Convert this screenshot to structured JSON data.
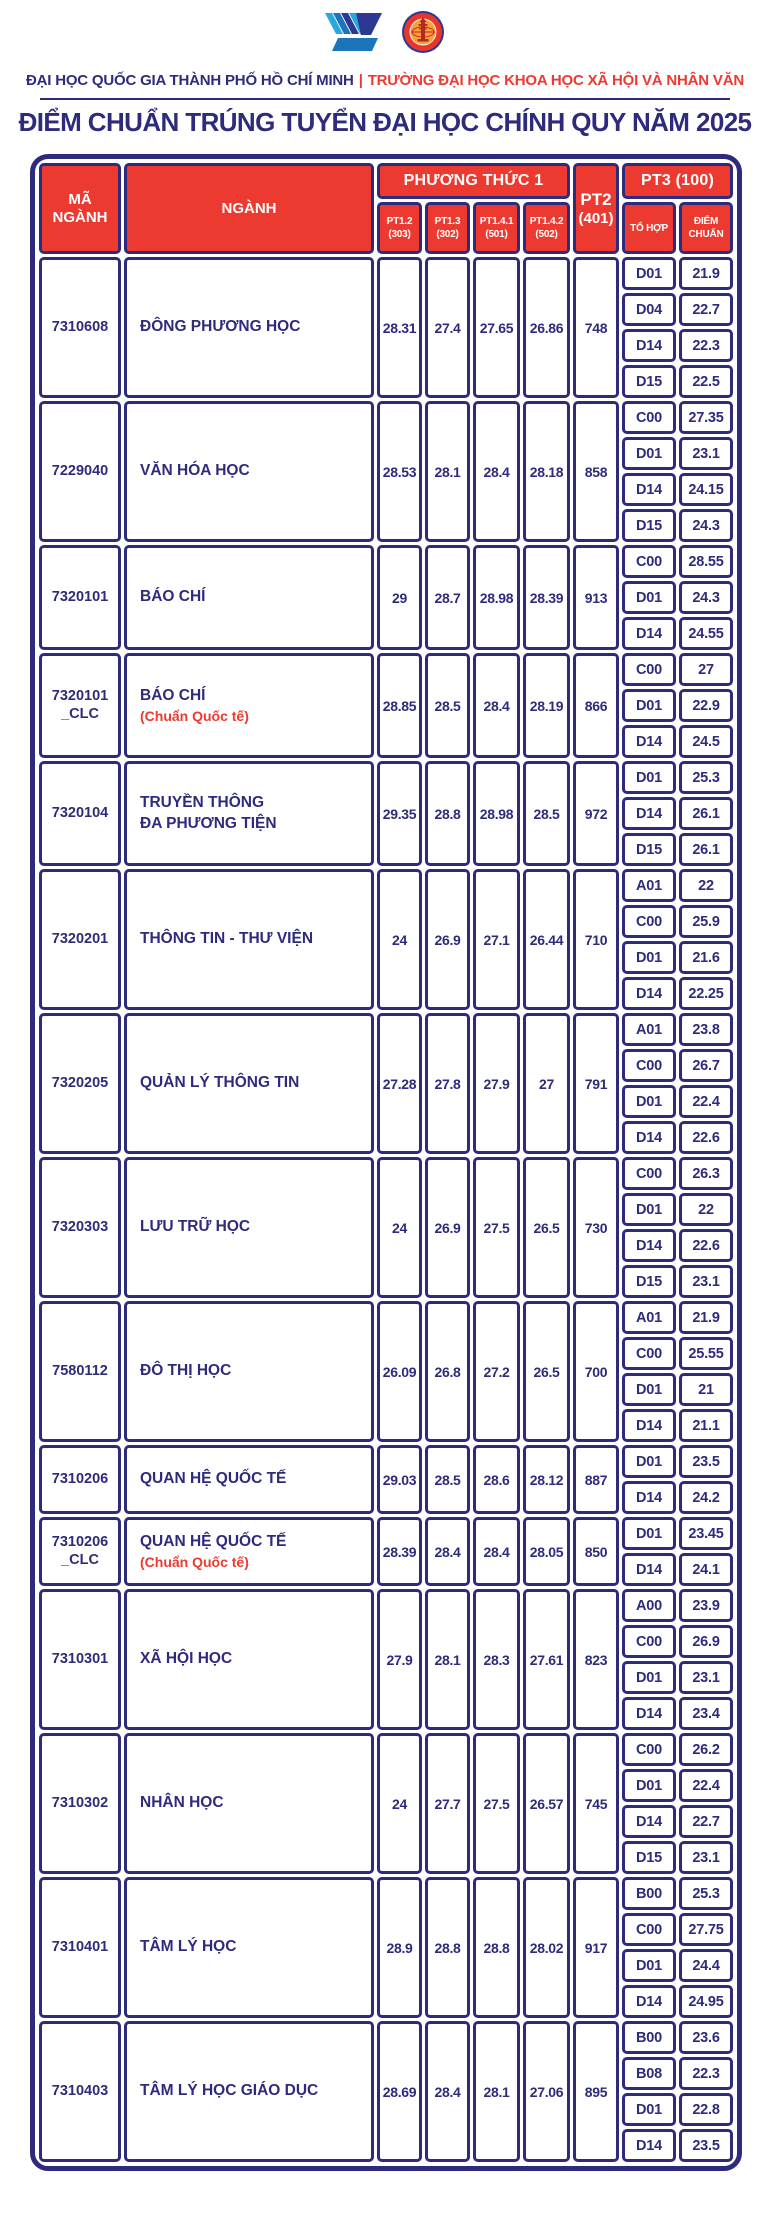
{
  "colors": {
    "navy": "#2e2b7c",
    "red": "#ec3a31",
    "logo_blue_dark": "#2b3990",
    "logo_blue_mid": "#1b75bb",
    "logo_blue_light": "#28a8e0",
    "seal_orange": "#f8a13a",
    "seal_red": "#b5281e"
  },
  "branding": {
    "logos": [
      "vnu-hcm-logo",
      "ussh-seal"
    ],
    "org_left": "ĐẠI HỌC QUỐC GIA THÀNH PHỐ HỒ CHÍ MINH",
    "separator": "|",
    "org_right": "TRƯỜNG ĐẠI HỌC KHOA HỌC XÃ HỘI VÀ NHÂN VĂN",
    "title": "ĐIỂM CHUẨN TRÚNG TUYỂN ĐẠI HỌC CHÍNH QUY NĂM 2025"
  },
  "table": {
    "header": {
      "ma_nganh": "MÃ NGÀNH",
      "nganh": "NGÀNH",
      "phuong_thuc_1": "PHƯƠNG THỨC 1",
      "pt1_subcols": [
        {
          "line1": "PT1.2",
          "line2": "(303)"
        },
        {
          "line1": "PT1.3",
          "line2": "(302)"
        },
        {
          "line1": "PT1.4.1",
          "line2": "(501)"
        },
        {
          "line1": "PT1.4.2",
          "line2": "(502)"
        }
      ],
      "pt2_line1": "PT2",
      "pt2_line2": "(401)",
      "pt3": "PT3 (100)",
      "to_hop": "TỔ HỢP",
      "diem_chuan_line1": "ĐIỂM",
      "diem_chuan_line2": "CHUẨN"
    },
    "rows": [
      {
        "code_lines": [
          "7310608"
        ],
        "name_lines": [
          "ĐÔNG PHƯƠNG HỌC"
        ],
        "pt1": [
          "28.31",
          "27.4",
          "27.65",
          "26.86"
        ],
        "pt2": "748",
        "pt3": [
          {
            "to_hop": "D01",
            "diem": "21.9"
          },
          {
            "to_hop": "D04",
            "diem": "22.7"
          },
          {
            "to_hop": "D14",
            "diem": "22.3"
          },
          {
            "to_hop": "D15",
            "diem": "22.5"
          }
        ]
      },
      {
        "code_lines": [
          "7229040"
        ],
        "name_lines": [
          "VĂN HÓA HỌC"
        ],
        "pt1": [
          "28.53",
          "28.1",
          "28.4",
          "28.18"
        ],
        "pt2": "858",
        "pt3": [
          {
            "to_hop": "C00",
            "diem": "27.35"
          },
          {
            "to_hop": "D01",
            "diem": "23.1"
          },
          {
            "to_hop": "D14",
            "diem": "24.15"
          },
          {
            "to_hop": "D15",
            "diem": "24.3"
          }
        ]
      },
      {
        "code_lines": [
          "7320101"
        ],
        "name_lines": [
          "BÁO CHÍ"
        ],
        "pt1": [
          "29",
          "28.7",
          "28.98",
          "28.39"
        ],
        "pt2": "913",
        "pt3": [
          {
            "to_hop": "C00",
            "diem": "28.55"
          },
          {
            "to_hop": "D01",
            "diem": "24.3"
          },
          {
            "to_hop": "D14",
            "diem": "24.55"
          }
        ]
      },
      {
        "code_lines": [
          "7320101",
          "_CLC"
        ],
        "name_lines": [
          "BÁO CHÍ"
        ],
        "note": "(Chuẩn Quốc tế)",
        "pt1": [
          "28.85",
          "28.5",
          "28.4",
          "28.19"
        ],
        "pt2": "866",
        "pt3": [
          {
            "to_hop": "C00",
            "diem": "27"
          },
          {
            "to_hop": "D01",
            "diem": "22.9"
          },
          {
            "to_hop": "D14",
            "diem": "24.5"
          }
        ]
      },
      {
        "code_lines": [
          "7320104"
        ],
        "name_lines": [
          "TRUYỀN THÔNG",
          "ĐA PHƯƠNG TIỆN"
        ],
        "pt1": [
          "29.35",
          "28.8",
          "28.98",
          "28.5"
        ],
        "pt2": "972",
        "pt3": [
          {
            "to_hop": "D01",
            "diem": "25.3"
          },
          {
            "to_hop": "D14",
            "diem": "26.1"
          },
          {
            "to_hop": "D15",
            "diem": "26.1"
          }
        ]
      },
      {
        "code_lines": [
          "7320201"
        ],
        "name_lines": [
          "THÔNG TIN - THƯ VIỆN"
        ],
        "pt1": [
          "24",
          "26.9",
          "27.1",
          "26.44"
        ],
        "pt2": "710",
        "pt3": [
          {
            "to_hop": "A01",
            "diem": "22"
          },
          {
            "to_hop": "C00",
            "diem": "25.9"
          },
          {
            "to_hop": "D01",
            "diem": "21.6"
          },
          {
            "to_hop": "D14",
            "diem": "22.25"
          }
        ]
      },
      {
        "code_lines": [
          "7320205"
        ],
        "name_lines": [
          "QUẢN LÝ THÔNG TIN"
        ],
        "pt1": [
          "27.28",
          "27.8",
          "27.9",
          "27"
        ],
        "pt2": "791",
        "pt3": [
          {
            "to_hop": "A01",
            "diem": "23.8"
          },
          {
            "to_hop": "C00",
            "diem": "26.7"
          },
          {
            "to_hop": "D01",
            "diem": "22.4"
          },
          {
            "to_hop": "D14",
            "diem": "22.6"
          }
        ]
      },
      {
        "code_lines": [
          "7320303"
        ],
        "name_lines": [
          "LƯU TRỮ HỌC"
        ],
        "pt1": [
          "24",
          "26.9",
          "27.5",
          "26.5"
        ],
        "pt2": "730",
        "pt3": [
          {
            "to_hop": "C00",
            "diem": "26.3"
          },
          {
            "to_hop": "D01",
            "diem": "22"
          },
          {
            "to_hop": "D14",
            "diem": "22.6"
          },
          {
            "to_hop": "D15",
            "diem": "23.1"
          }
        ]
      },
      {
        "code_lines": [
          "7580112"
        ],
        "name_lines": [
          "ĐÔ THỊ HỌC"
        ],
        "pt1": [
          "26.09",
          "26.8",
          "27.2",
          "26.5"
        ],
        "pt2": "700",
        "pt3": [
          {
            "to_hop": "A01",
            "diem": "21.9"
          },
          {
            "to_hop": "C00",
            "diem": "25.55"
          },
          {
            "to_hop": "D01",
            "diem": "21"
          },
          {
            "to_hop": "D14",
            "diem": "21.1"
          }
        ]
      },
      {
        "code_lines": [
          "7310206"
        ],
        "name_lines": [
          "QUAN HỆ QUỐC TẾ"
        ],
        "pt1": [
          "29.03",
          "28.5",
          "28.6",
          "28.12"
        ],
        "pt2": "887",
        "pt3": [
          {
            "to_hop": "D01",
            "diem": "23.5"
          },
          {
            "to_hop": "D14",
            "diem": "24.2"
          }
        ]
      },
      {
        "code_lines": [
          "7310206",
          "_CLC"
        ],
        "name_lines": [
          "QUAN HỆ QUỐC TẾ"
        ],
        "note": "(Chuẩn Quốc tế)",
        "pt1": [
          "28.39",
          "28.4",
          "28.4",
          "28.05"
        ],
        "pt2": "850",
        "pt3": [
          {
            "to_hop": "D01",
            "diem": "23.45"
          },
          {
            "to_hop": "D14",
            "diem": "24.1"
          }
        ]
      },
      {
        "code_lines": [
          "7310301"
        ],
        "name_lines": [
          "XÃ HỘI HỌC"
        ],
        "pt1": [
          "27.9",
          "28.1",
          "28.3",
          "27.61"
        ],
        "pt2": "823",
        "pt3": [
          {
            "to_hop": "A00",
            "diem": "23.9"
          },
          {
            "to_hop": "C00",
            "diem": "26.9"
          },
          {
            "to_hop": "D01",
            "diem": "23.1"
          },
          {
            "to_hop": "D14",
            "diem": "23.4"
          }
        ]
      },
      {
        "code_lines": [
          "7310302"
        ],
        "name_lines": [
          "NHÂN HỌC"
        ],
        "pt1": [
          "24",
          "27.7",
          "27.5",
          "26.57"
        ],
        "pt2": "745",
        "pt3": [
          {
            "to_hop": "C00",
            "diem": "26.2"
          },
          {
            "to_hop": "D01",
            "diem": "22.4"
          },
          {
            "to_hop": "D14",
            "diem": "22.7"
          },
          {
            "to_hop": "D15",
            "diem": "23.1"
          }
        ]
      },
      {
        "code_lines": [
          "7310401"
        ],
        "name_lines": [
          "TÂM LÝ HỌC"
        ],
        "pt1": [
          "28.9",
          "28.8",
          "28.8",
          "28.02"
        ],
        "pt2": "917",
        "pt3": [
          {
            "to_hop": "B00",
            "diem": "25.3"
          },
          {
            "to_hop": "C00",
            "diem": "27.75"
          },
          {
            "to_hop": "D01",
            "diem": "24.4"
          },
          {
            "to_hop": "D14",
            "diem": "24.95"
          }
        ]
      },
      {
        "code_lines": [
          "7310403"
        ],
        "name_lines": [
          "TÂM LÝ HỌC GIÁO DỤC"
        ],
        "pt1": [
          "28.69",
          "28.4",
          "28.1",
          "27.06"
        ],
        "pt2": "895",
        "pt3": [
          {
            "to_hop": "B00",
            "diem": "23.6"
          },
          {
            "to_hop": "B08",
            "diem": "22.3"
          },
          {
            "to_hop": "D01",
            "diem": "22.8"
          },
          {
            "to_hop": "D14",
            "diem": "23.5"
          }
        ]
      }
    ]
  }
}
